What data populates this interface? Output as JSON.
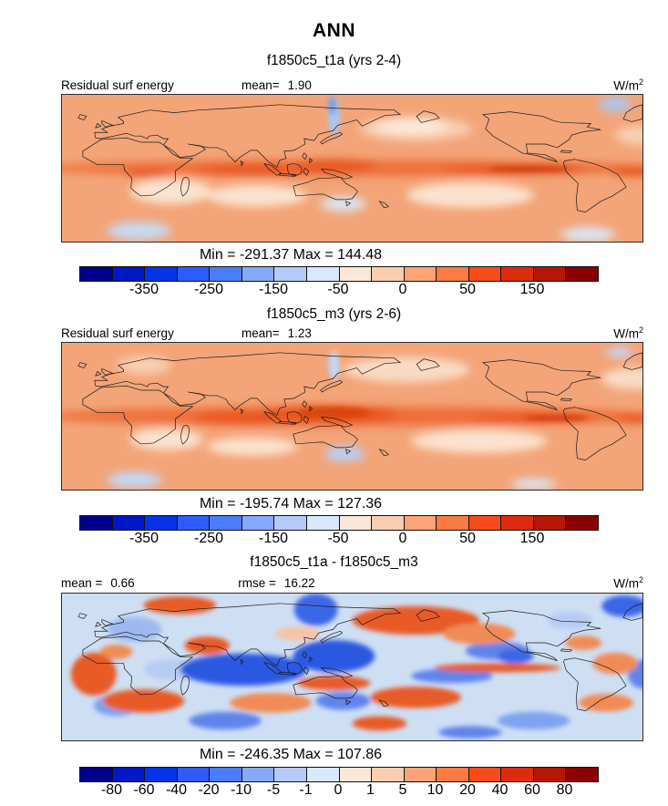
{
  "title": "ANN",
  "units": {
    "base": "W/m",
    "exp": "2"
  },
  "colorbar_colors": [
    "#00008c",
    "#0018c6",
    "#0534e8",
    "#2c5cff",
    "#4a7cff",
    "#86a9fc",
    "#b5caf8",
    "#d9e8fa",
    "#fae7d8",
    "#fbcdb0",
    "#fca377",
    "#fb7b42",
    "#f74b19",
    "#dc2b0d",
    "#b51706",
    "#8b0000"
  ],
  "panels": [
    {
      "subtitle": "f1850c5_t1a (yrs 2-4)",
      "field_label": "Residual surf energy",
      "mean_label": "mean=",
      "mean_value": "1.90",
      "minmax": "Min = -291.37 Max = 144.48",
      "ticks": [
        "-350",
        "-250",
        "-150",
        "-50",
        "0",
        "50",
        "150"
      ],
      "tick_step": 2
    },
    {
      "subtitle": "f1850c5_m3 (yrs 2-6)",
      "field_label": "Residual surf energy",
      "mean_label": "mean=",
      "mean_value": "1.23",
      "minmax": "Min = -195.74 Max = 127.36",
      "ticks": [
        "-350",
        "-250",
        "-150",
        "-50",
        "0",
        "50",
        "150"
      ],
      "tick_step": 2
    },
    {
      "subtitle": "f1850c5_t1a - f1850c5_m3",
      "mean_label": "mean =",
      "mean_value": "0.66",
      "rmse_label": "rmse =",
      "rmse_value": "16.22",
      "minmax": "Min = -246.35 Max = 107.86",
      "ticks": [
        "-80",
        "-60",
        "-40",
        "-20",
        "-10",
        "-5",
        "-1",
        "0",
        "1",
        "5",
        "10",
        "20",
        "40",
        "60",
        "80"
      ],
      "tick_step": 1
    }
  ],
  "chart_data": [
    {
      "type": "heatmap",
      "subtype": "global-lat-lon-map",
      "season": "ANN",
      "title": "f1850c5_t1a (yrs 2-4)",
      "field": "Residual surf energy",
      "units": "W/m^2",
      "mean": 1.9,
      "min": -291.37,
      "max": 144.48,
      "colorbar_tick_values": [
        -350,
        -250,
        -150,
        -50,
        0,
        50,
        150
      ],
      "colorbar_segments": 16,
      "palette": "blue-to-red diverging",
      "legend_position": "bottom",
      "notes": "mostly light orange/salmon field with darker orange equatorial band, pale subtropical patches, light blue NW-Pacific streak"
    },
    {
      "type": "heatmap",
      "subtype": "global-lat-lon-map",
      "season": "ANN",
      "title": "f1850c5_m3 (yrs 2-6)",
      "field": "Residual surf energy",
      "units": "W/m^2",
      "mean": 1.23,
      "min": -195.74,
      "max": 127.36,
      "colorbar_tick_values": [
        -350,
        -250,
        -150,
        -50,
        0,
        50,
        150
      ],
      "colorbar_segments": 16,
      "palette": "blue-to-red diverging",
      "legend_position": "bottom",
      "notes": "similar salmon field; wider/stronger dark orange band over Maritime Continent and equatorial Pacific"
    },
    {
      "type": "heatmap",
      "subtype": "global-lat-lon-difference-map",
      "season": "ANN",
      "title": "f1850c5_t1a - f1850c5_m3",
      "field": "Residual surf energy",
      "units": "W/m^2",
      "mean": 0.66,
      "rmse": 16.22,
      "min": -246.35,
      "max": 107.86,
      "colorbar_tick_values": [
        -80,
        -60,
        -40,
        -20,
        -10,
        -5,
        -1,
        0,
        1,
        5,
        10,
        20,
        40,
        60,
        80
      ],
      "colorbar_segments": 16,
      "palette": "blue-to-red diverging",
      "legend_position": "bottom",
      "notes": "mottled difference field: deep blue equatorial Indian/west Pacific, red North Pacific and subtropical oceans"
    }
  ]
}
